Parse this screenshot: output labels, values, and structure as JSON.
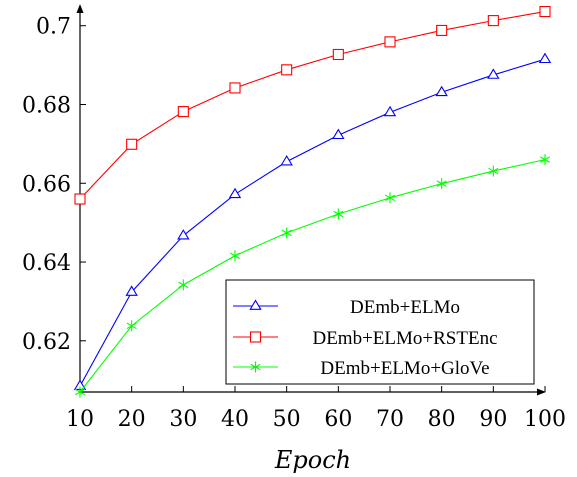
{
  "chart_data": {
    "type": "line",
    "title": "",
    "xlabel": "Epoch",
    "ylabel": "",
    "x": [
      10,
      20,
      30,
      40,
      50,
      60,
      70,
      80,
      90,
      100
    ],
    "xticks": [
      "10",
      "20",
      "30",
      "40",
      "50",
      "60",
      "70",
      "80",
      "90",
      "100"
    ],
    "yticks": [
      "0.62",
      "0.64",
      "0.66",
      "0.68",
      "0.7"
    ],
    "ytick_values": [
      0.62,
      0.64,
      0.66,
      0.68,
      0.7
    ],
    "xlim": [
      10,
      100
    ],
    "ylim": [
      0.607,
      0.7045
    ],
    "grid": false,
    "legend_position": "bottom-right",
    "series": [
      {
        "name": "DEmb+ELMo",
        "color": "#0000ff",
        "marker": "triangle",
        "values": [
          0.6085,
          0.6324,
          0.6467,
          0.6572,
          0.6655,
          0.6722,
          0.678,
          0.6831,
          0.6875,
          0.6915
        ]
      },
      {
        "name": "DEmb+ELMo+RSTEnc",
        "color": "#ff0000",
        "marker": "square",
        "values": [
          0.656,
          0.6699,
          0.6782,
          0.6842,
          0.6888,
          0.6927,
          0.6959,
          0.6988,
          0.7013,
          0.7036
        ]
      },
      {
        "name": "DEmb+ELMo+GloVe",
        "color": "#00ff00",
        "marker": "asterisk",
        "values": [
          0.607,
          0.6238,
          0.6342,
          0.6416,
          0.6474,
          0.6522,
          0.6563,
          0.6599,
          0.6631,
          0.666
        ]
      }
    ]
  }
}
